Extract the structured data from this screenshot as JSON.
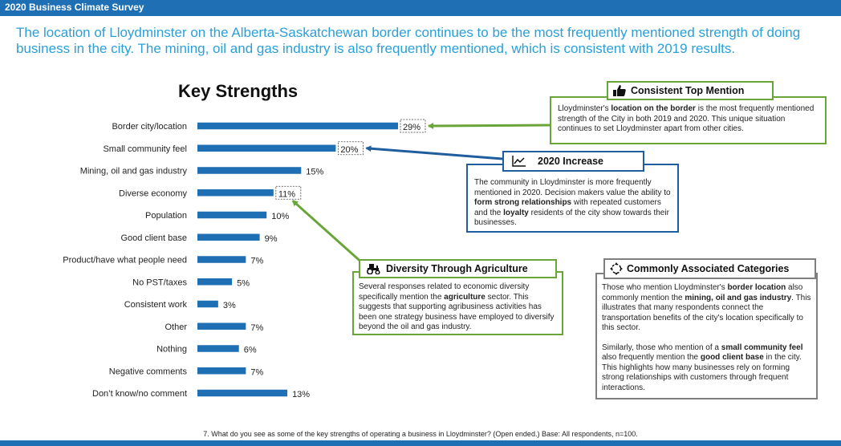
{
  "header": {
    "title": "2020 Business Climate Survey"
  },
  "headline": "The location of Lloydminster on the Alberta-Saskatchewan border continues to be the most frequently mentioned strength of doing business in the city. The mining, oil and gas industry is also frequently mentioned, which is consistent with 2019 results.",
  "chart_data": {
    "type": "bar",
    "orientation": "horizontal",
    "title": "Key Strengths",
    "categories": [
      "Border city/location",
      "Small community feel",
      "Mining, oil and gas industry",
      "Diverse economy",
      "Population",
      "Good client base",
      "Product/have what people need",
      "No PST/taxes",
      "Consistent work",
      "Other",
      "Nothing",
      "Negative comments",
      "Don’t know/no comment"
    ],
    "values": [
      29,
      20,
      15,
      11,
      10,
      9,
      7,
      5,
      3,
      7,
      6,
      7,
      13
    ],
    "labels": [
      "29%",
      "20%",
      "15%",
      "11%",
      "10%",
      "9%",
      "7%",
      "5%",
      "3%",
      "7%",
      "6%",
      "7%",
      "13%"
    ],
    "highlighted": [
      0,
      1,
      3
    ],
    "bar_color": "#1f6fb5",
    "xlim": [
      0,
      30
    ],
    "grid": false
  },
  "callouts": {
    "consistent": {
      "title": "Consistent Top Mention",
      "icon": "thumbs-up-icon",
      "p1": "Lloydminster's ",
      "b1": "location on the border",
      "p2": " is the most frequently mentioned strength of the City in both 2019 and 2020. This unique situation continues to set Lloydminster apart from other cities."
    },
    "increase": {
      "title": "2020 Increase",
      "icon": "trend-chart-icon",
      "p1": "The community in Lloydminster is more frequently mentioned in 2020. Decision makers value the ability to ",
      "b1": "form strong relationships",
      "p2": " with repeated customers and the ",
      "b2": "loyalty",
      "p3": " residents of the city show towards their businesses."
    },
    "agriculture": {
      "title": "Diversity Through Agriculture",
      "icon": "tractor-icon",
      "p1": "Several responses related to economic diversity specifically mention the ",
      "b1": "agriculture",
      "p2": " sector. This suggests that supporting agribusiness activities has been one strategy business have employed to diversify beyond the oil and gas industry."
    },
    "associated": {
      "title": "Commonly Associated Categories",
      "icon": "connection-icon",
      "p1": "Those who mention Lloydminster's ",
      "b1": "border location",
      "p2": " also commonly mention the ",
      "b2": "mining, oil and gas industry",
      "p3": ". This illustrates that many respondents connect the transportation benefits of the city's location specifically to this sector.",
      "p4": "Similarly, those who mention of a ",
      "b3": "small community feel",
      "p5": " also frequently mention the ",
      "b4": "good client base",
      "p6": " in the city. This highlights how many businesses rely on forming strong relationships with customers through frequent interactions."
    }
  },
  "footnote": "7. What do you see as some of the key strengths of operating a business in Lloydminster? (Open ended.) Base: All respondents, n=100.",
  "colors": {
    "accent_blue": "#1f6fb5",
    "headline_blue": "#2a9fd8",
    "green": "#6aa539",
    "navy": "#1f5e9e",
    "grey": "#7f7f7f"
  }
}
